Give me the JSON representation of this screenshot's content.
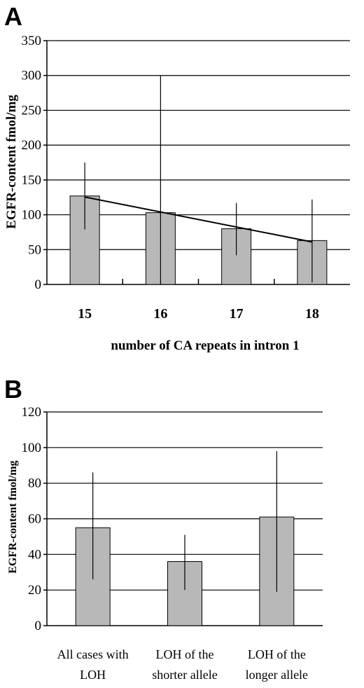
{
  "chart_data": [
    {
      "panel": "A",
      "type": "bar",
      "categories": [
        "15",
        "16",
        "17",
        "18"
      ],
      "values": [
        127,
        103,
        80,
        63
      ],
      "error_upper": [
        175,
        300,
        117,
        122
      ],
      "error_lower": [
        79,
        0,
        42,
        3
      ],
      "trendline": true,
      "xlabel": "number of CA repeats in intron 1",
      "ylabel": "EGFR-content fmol/mg",
      "ylim": [
        0,
        350
      ],
      "yticks": [
        "0",
        "50",
        "100",
        "150",
        "200",
        "250",
        "300",
        "350"
      ],
      "grid": true
    },
    {
      "panel": "B",
      "type": "bar",
      "categories": [
        [
          "All cases with",
          "LOH"
        ],
        [
          "LOH of the",
          "shorter allele"
        ],
        [
          "LOH of the",
          "longer allele"
        ]
      ],
      "values": [
        55,
        36,
        61
      ],
      "error_upper": [
        86,
        51,
        98
      ],
      "error_lower": [
        26,
        20,
        19
      ],
      "xlabel": "",
      "ylabel": "EGFR-content fmol/mg",
      "ylim": [
        0,
        120
      ],
      "yticks": [
        "0",
        "20",
        "40",
        "60",
        "80",
        "100",
        "120"
      ],
      "grid": true
    }
  ]
}
